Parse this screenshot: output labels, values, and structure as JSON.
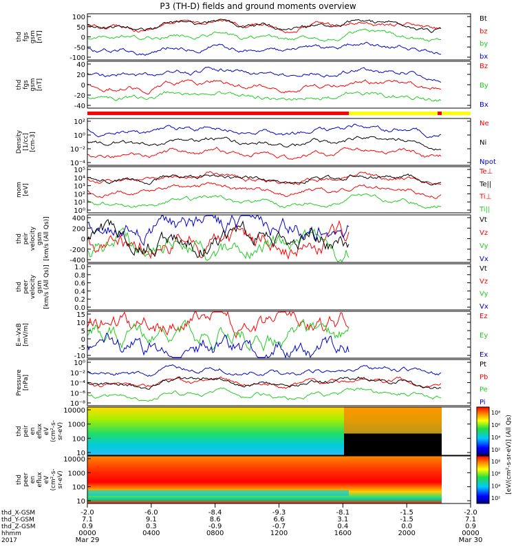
{
  "title": "P3 (TH-D) fields and ground moments overview",
  "colors": {
    "black": "#000000",
    "red": "#ff0000",
    "green": "#22cc22",
    "blue": "#0000cc",
    "yellow": "#ffff00"
  },
  "chart_data": {
    "type": "line",
    "xaxis": {
      "rows": [
        {
          "label": "thd_X-GSM",
          "values": [
            "-2.0",
            "-6.0",
            "-8.4",
            "-9.3",
            "-8.1",
            "-1.5",
            "-2.0"
          ]
        },
        {
          "label": "thd_Y-GSM",
          "values": [
            "7.1",
            "9.1",
            "8.6",
            "6.6",
            "3.1",
            "-1.5",
            "7.1"
          ]
        },
        {
          "label": "thd_Z-GSM",
          "values": [
            "0.9",
            "0.3",
            "-0.9",
            "-0.7",
            "0.4",
            "0.0",
            "0.9"
          ]
        },
        {
          "label": "hhmm",
          "values": [
            "0000",
            "0400",
            "0800",
            "1200",
            "1600",
            "2000",
            "0000"
          ]
        }
      ],
      "year": "2017",
      "date_start": "Mar 29",
      "date_end": "Mar 30",
      "hours": [
        0,
        4,
        8,
        12,
        16,
        20,
        24
      ]
    },
    "panels": [
      {
        "id": "fgs",
        "ylabel": [
          "thd",
          "fgs",
          "gsm",
          "[nT]"
        ],
        "ticks": [
          "100",
          "50",
          "0",
          "-50",
          "-100"
        ],
        "legend": [
          {
            "label": "Bt",
            "color": "#000000"
          },
          {
            "label": "bz",
            "color": "#ff0000"
          },
          {
            "label": "by",
            "color": "#22cc22"
          },
          {
            "label": "bx",
            "color": "#0000cc"
          }
        ]
      },
      {
        "id": "fgs-detail",
        "ylabel": [
          "thd",
          "fgs",
          "gsm",
          "[nT]"
        ],
        "ticks": [
          "40",
          "20",
          "0",
          "-20",
          "-40"
        ],
        "legend": [
          {
            "label": "Bz",
            "color": "#ff0000"
          },
          {
            "label": "By",
            "color": "#22cc22"
          },
          {
            "label": "Bx",
            "color": "#0000cc"
          }
        ]
      },
      {
        "id": "density",
        "ylabel": [
          "Density",
          "[1/cc]",
          "[cm-3]"
        ],
        "ticks": [
          "10²",
          "10⁰",
          "10⁻²",
          "10⁻⁴"
        ],
        "legend": [
          {
            "label": "Ne",
            "color": "#ff0000"
          },
          {
            "label": "Ni",
            "color": "#000000"
          },
          {
            "label": "Npot",
            "color": "#0000cc"
          }
        ]
      },
      {
        "id": "temp",
        "ylabel": [
          "mom",
          "[eV]"
        ],
        "ticks": [
          "10⁵",
          "10⁴",
          "10³",
          "10²",
          "10¹",
          "10⁰"
        ],
        "legend": [
          {
            "label": "Te⊥",
            "color": "#ff0000"
          },
          {
            "label": "Te||",
            "color": "#000000"
          },
          {
            "label": "Ti⊥",
            "color": "#ff0000"
          },
          {
            "label": "Ti||",
            "color": "#22cc22"
          }
        ]
      },
      {
        "id": "peir-vel",
        "ylabel": [
          "thd",
          "peir",
          "velocity",
          "gsm",
          "[km/s (All Qs)]"
        ],
        "ticks": [
          "400",
          "200",
          "0",
          "-200",
          "-400"
        ],
        "legend": [
          {
            "label": "Vt",
            "color": "#000000"
          },
          {
            "label": "Vz",
            "color": "#ff0000"
          },
          {
            "label": "Vy",
            "color": "#22cc22"
          },
          {
            "label": "Vx",
            "color": "#0000cc"
          }
        ]
      },
      {
        "id": "peer-vel",
        "ylabel": [
          "thd",
          "peer",
          "velocity",
          "gsm",
          "[km/s (All Qs)]"
        ],
        "ticks": [
          "1.0",
          "0.8",
          "0.6",
          "0.4",
          "0.2",
          "0.0"
        ],
        "legend": [
          {
            "label": "Vt",
            "color": "#000000"
          },
          {
            "label": "Vz",
            "color": "#ff0000"
          },
          {
            "label": "Vy",
            "color": "#22cc22"
          },
          {
            "label": "Vx",
            "color": "#0000cc"
          }
        ]
      },
      {
        "id": "efield",
        "ylabel": [
          "E=-VxB",
          "[mV/m]"
        ],
        "ticks": [
          "15",
          "10",
          "5",
          "0",
          "-5",
          "-10"
        ],
        "legend": [
          {
            "label": "Ez",
            "color": "#ff0000"
          },
          {
            "label": "Ey",
            "color": "#22cc22"
          },
          {
            "label": "Ex",
            "color": "#0000cc"
          }
        ]
      },
      {
        "id": "pressure",
        "ylabel": [
          "Pressure",
          "[nPa]"
        ],
        "ticks": [
          "10⁰",
          "10⁻²",
          "10⁻⁴",
          "10⁻⁶",
          "10⁻⁸"
        ],
        "legend": [
          {
            "label": "Pt",
            "color": "#000000"
          },
          {
            "label": "Pb",
            "color": "#ff0000"
          },
          {
            "label": "Pe",
            "color": "#22cc22"
          },
          {
            "label": "Pi",
            "color": "#0000cc"
          }
        ]
      },
      {
        "id": "peir-spec",
        "ylabel": [
          "thd",
          "peir",
          "en",
          "eflux",
          "eV",
          "(cm²-s-",
          "sr-eV)"
        ],
        "ticks": [
          "10000",
          "1000",
          "100",
          "10"
        ],
        "colorbar": [
          "10⁸",
          "10⁶",
          "10⁴",
          "10²"
        ]
      },
      {
        "id": "peer-spec",
        "ylabel": [
          "thd",
          "peer",
          "en",
          "eflux",
          "eV",
          "(cm²-s-",
          "sr-eV)"
        ],
        "ticks": [
          "10000",
          "1000",
          "100",
          "10"
        ],
        "colorbar": [
          "10⁸",
          "10⁶",
          "10⁴",
          "10²"
        ]
      }
    ],
    "colorbar_label": "[eV/(cm²-s-sr-eV)] (All Qs)"
  }
}
